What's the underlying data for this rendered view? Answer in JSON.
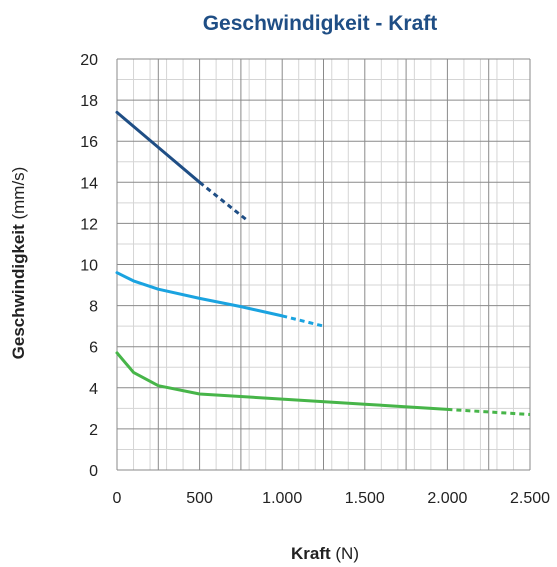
{
  "chart_data": {
    "type": "line",
    "title": "Geschwindigkeit - Kraft",
    "xlabel": "Kraft",
    "xlabel_unit": "(N)",
    "ylabel": "Geschwindigkeit",
    "ylabel_unit": "(mm/s)",
    "xlim": [
      0,
      2500
    ],
    "ylim": [
      0,
      20
    ],
    "x_ticks": [
      0,
      500,
      1000,
      1500,
      2000,
      2500
    ],
    "x_tick_labels": [
      "0",
      "500",
      "1.000",
      "1.500",
      "2.000",
      "2.500"
    ],
    "y_ticks": [
      0,
      2,
      4,
      6,
      8,
      10,
      12,
      14,
      16,
      18,
      20
    ],
    "y_tick_labels": [
      "0",
      "2",
      "4",
      "6",
      "8",
      "10",
      "12",
      "14",
      "16",
      "18",
      "20"
    ],
    "grid": true,
    "series": [
      {
        "color": "#1f4e85",
        "solid": [
          [
            0,
            17.4
          ],
          [
            250,
            15.7
          ],
          [
            500,
            14.0
          ]
        ],
        "dashed": [
          [
            500,
            14.0
          ],
          [
            780,
            12.2
          ]
        ]
      },
      {
        "color": "#1aa3e0",
        "solid": [
          [
            0,
            9.6
          ],
          [
            100,
            9.2
          ],
          [
            250,
            8.8
          ],
          [
            500,
            8.35
          ],
          [
            750,
            7.95
          ],
          [
            1000,
            7.5
          ]
        ],
        "dashed": [
          [
            1000,
            7.5
          ],
          [
            1250,
            7.0
          ]
        ]
      },
      {
        "color": "#47b549",
        "solid": [
          [
            0,
            5.7
          ],
          [
            100,
            4.75
          ],
          [
            250,
            4.1
          ],
          [
            500,
            3.7
          ],
          [
            1000,
            3.45
          ],
          [
            1500,
            3.2
          ],
          [
            2000,
            2.95
          ]
        ],
        "dashed": [
          [
            2000,
            2.95
          ],
          [
            2500,
            2.7
          ]
        ]
      }
    ]
  },
  "colors": {
    "title": "#1f4e85",
    "grid_major": "#8a8a8a",
    "grid_minor": "#d5d5d5"
  }
}
